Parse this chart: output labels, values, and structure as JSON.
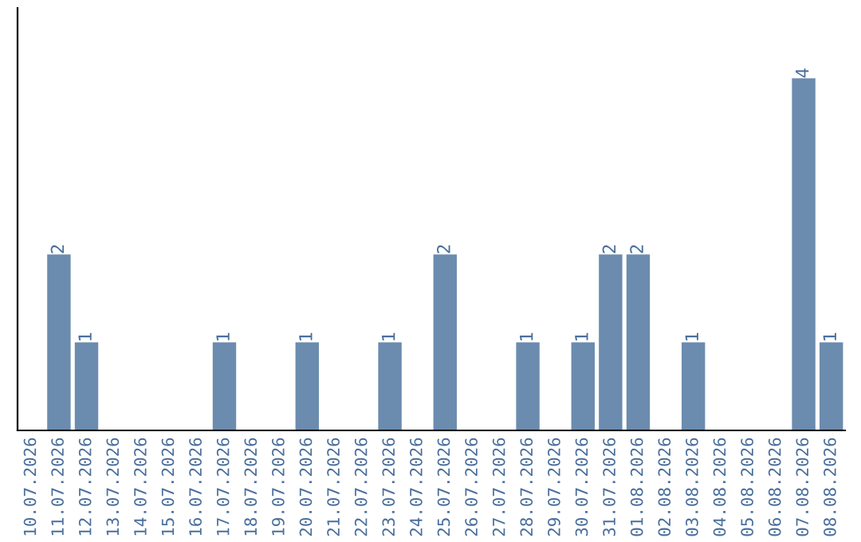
{
  "chart_data": {
    "type": "bar",
    "categories": [
      "10.07.2026",
      "11.07.2026",
      "12.07.2026",
      "13.07.2026",
      "14.07.2026",
      "15.07.2026",
      "16.07.2026",
      "17.07.2026",
      "18.07.2026",
      "19.07.2026",
      "20.07.2026",
      "21.07.2026",
      "22.07.2026",
      "23.07.2026",
      "24.07.2026",
      "25.07.2026",
      "26.07.2026",
      "27.07.2026",
      "28.07.2026",
      "29.07.2026",
      "30.07.2026",
      "31.07.2026",
      "01.08.2026",
      "02.08.2026",
      "03.08.2026",
      "04.08.2026",
      "05.08.2026",
      "06.08.2026",
      "07.08.2026",
      "08.08.2026"
    ],
    "values": [
      0,
      2,
      1,
      0,
      0,
      0,
      0,
      1,
      0,
      0,
      1,
      0,
      0,
      1,
      0,
      2,
      0,
      0,
      1,
      0,
      1,
      2,
      2,
      0,
      1,
      0,
      0,
      0,
      4,
      1
    ],
    "value_labels": [
      null,
      "2",
      "1",
      null,
      null,
      null,
      null,
      "1",
      null,
      null,
      "1",
      null,
      null,
      "1",
      null,
      "2",
      null,
      null,
      "1",
      null,
      "1",
      "2",
      "2",
      null,
      "1",
      null,
      null,
      null,
      "4",
      "1"
    ],
    "color": "#6b8cae",
    "grid": false,
    "legend": false
  }
}
